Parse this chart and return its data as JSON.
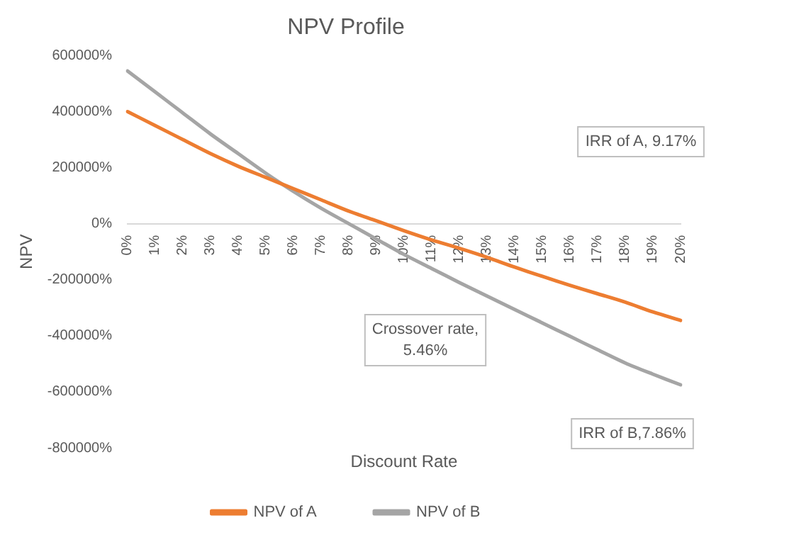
{
  "chart_data": {
    "type": "line",
    "title": "NPV Profile",
    "xlabel": "Discount Rate",
    "ylabel": "NPV",
    "categories": [
      "0%",
      "1%",
      "2%",
      "3%",
      "4%",
      "5%",
      "6%",
      "7%",
      "8%",
      "9%",
      "10%",
      "11%",
      "12%",
      "13%",
      "14%",
      "15%",
      "16%",
      "17%",
      "18%",
      "19%",
      "20%"
    ],
    "series": [
      {
        "name": "NPV of A",
        "color": "#ed7d31",
        "values": [
          400000,
          350000,
          300000,
          250000,
          205000,
          165000,
          125000,
          85000,
          45000,
          10000,
          -25000,
          -58000,
          -88000,
          -120000,
          -155000,
          -188000,
          -220000,
          -250000,
          -280000,
          -315000,
          -345000
        ]
      },
      {
        "name": "NPV of B",
        "color": "#a5a5a5",
        "values": [
          545000,
          470000,
          395000,
          320000,
          250000,
          180000,
          115000,
          55000,
          0,
          -55000,
          -110000,
          -160000,
          -210000,
          -258000,
          -306000,
          -354000,
          -402000,
          -450000,
          -497000,
          -537000,
          -575000
        ]
      }
    ],
    "ylim": [
      -800000,
      600000
    ],
    "yticks": [
      {
        "value": -800000,
        "label": "-800000%"
      },
      {
        "value": -600000,
        "label": "-600000%"
      },
      {
        "value": -400000,
        "label": "-400000%"
      },
      {
        "value": -200000,
        "label": "-200000%"
      },
      {
        "value": 0,
        "label": "0%"
      },
      {
        "value": 200000,
        "label": "200000%"
      },
      {
        "value": 400000,
        "label": "400000%"
      },
      {
        "value": 600000,
        "label": "600000%"
      }
    ],
    "grid": false,
    "legend": "bottom",
    "marker": "none",
    "line_style": "solid",
    "annotations": [
      "IRR of A, 9.17%",
      "Crossover rate, 5.46%",
      "IRR of B,7.86%"
    ]
  }
}
